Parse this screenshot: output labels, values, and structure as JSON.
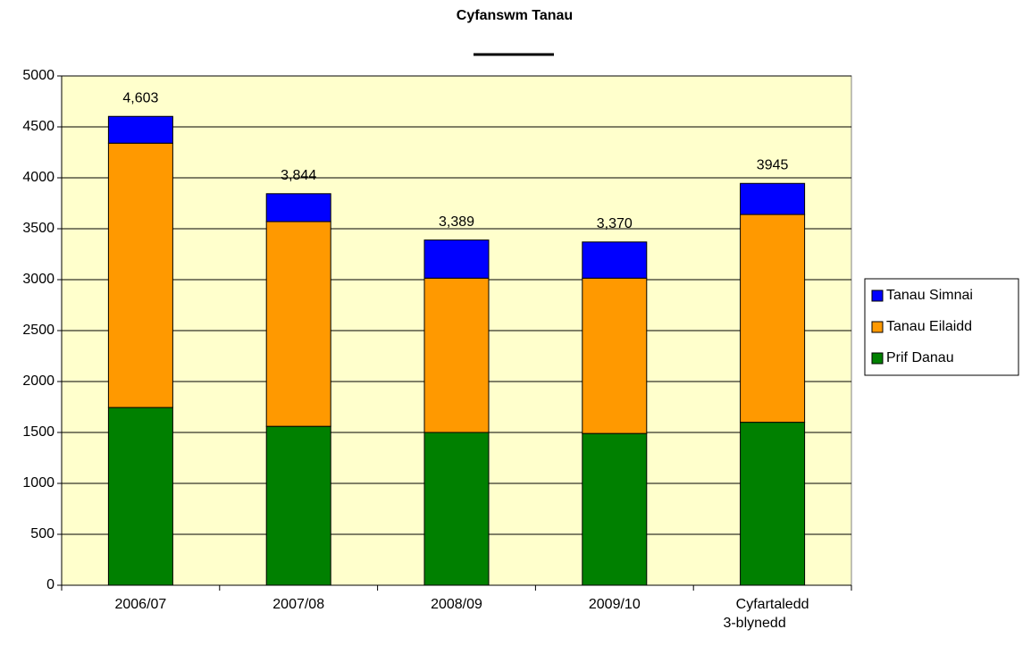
{
  "chart_data": {
    "type": "stacked_bar",
    "title": "Cyfanswm Tanau",
    "categories": [
      "2006/07",
      "2007/08",
      "2008/09",
      "2009/10",
      "Cyfartaledd 3-blynedd"
    ],
    "series": [
      {
        "name": "Prif Danau",
        "color": "#008000",
        "values": [
          1745,
          1560,
          1500,
          1490,
          1600
        ]
      },
      {
        "name": "Tanau Eilaidd",
        "color": "#ff9900",
        "values": [
          2595,
          2010,
          1515,
          1525,
          2040
        ]
      },
      {
        "name": "Tanau Simnai",
        "color": "#0000ff",
        "values": [
          263,
          274,
          374,
          355,
          305
        ]
      }
    ],
    "totals": [
      4603,
      3844,
      3389,
      3370,
      3945
    ],
    "total_labels": [
      "4,603",
      "3,844",
      "3,389",
      "3,370",
      "3945"
    ],
    "ylim": [
      0,
      5000
    ],
    "yticks": [
      0,
      500,
      1000,
      1500,
      2000,
      2500,
      3000,
      3500,
      4000,
      4500,
      5000
    ],
    "grid": true,
    "plot_background": "#ffffcc",
    "legend": "right"
  }
}
